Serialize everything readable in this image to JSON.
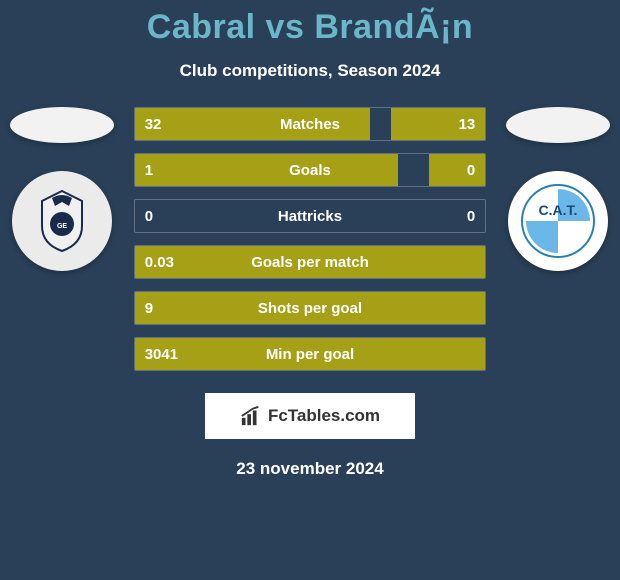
{
  "header": {
    "title": "Cabral vs BrandÃ¡n",
    "subtitle": "Club competitions, Season 2024"
  },
  "left_side": {
    "flag_bg": "#f2f2f2",
    "badge_bg": "#ebebeb",
    "badge_text_color": "#1a2a4a",
    "badge_text": ""
  },
  "right_side": {
    "flag_bg": "#f2f2f2",
    "badge_bg": "#ffffff",
    "badge_text_color": "#2a7fb5",
    "badge_text": "C.A.T."
  },
  "stats": {
    "bar_bg_border": "rgba(255,255,255,0.25)",
    "fill_color": "#a6a017",
    "label_fontsize": 15,
    "value_fontsize": 15,
    "rows": [
      {
        "label": "Matches",
        "left_val": "32",
        "right_val": "13",
        "left_pct": 67,
        "right_pct": 27
      },
      {
        "label": "Goals",
        "left_val": "1",
        "right_val": "0",
        "left_pct": 75,
        "right_pct": 16
      },
      {
        "label": "Hattricks",
        "left_val": "0",
        "right_val": "0",
        "left_pct": 0,
        "right_pct": 0
      },
      {
        "label": "Goals per match",
        "left_val": "0.03",
        "right_val": "",
        "left_pct": 100,
        "right_pct": 0
      },
      {
        "label": "Shots per goal",
        "left_val": "9",
        "right_val": "",
        "left_pct": 100,
        "right_pct": 0
      },
      {
        "label": "Min per goal",
        "left_val": "3041",
        "right_val": "",
        "left_pct": 100,
        "right_pct": 0
      }
    ]
  },
  "brand": {
    "text": "FcTables.com",
    "bg": "#ffffff",
    "text_color": "#333333",
    "icon_color": "#333333"
  },
  "footer": {
    "date": "23 november 2024"
  },
  "colors": {
    "page_bg": "#2a4058",
    "title_color": "#6bb6c9",
    "text_color": "#ffffff"
  }
}
